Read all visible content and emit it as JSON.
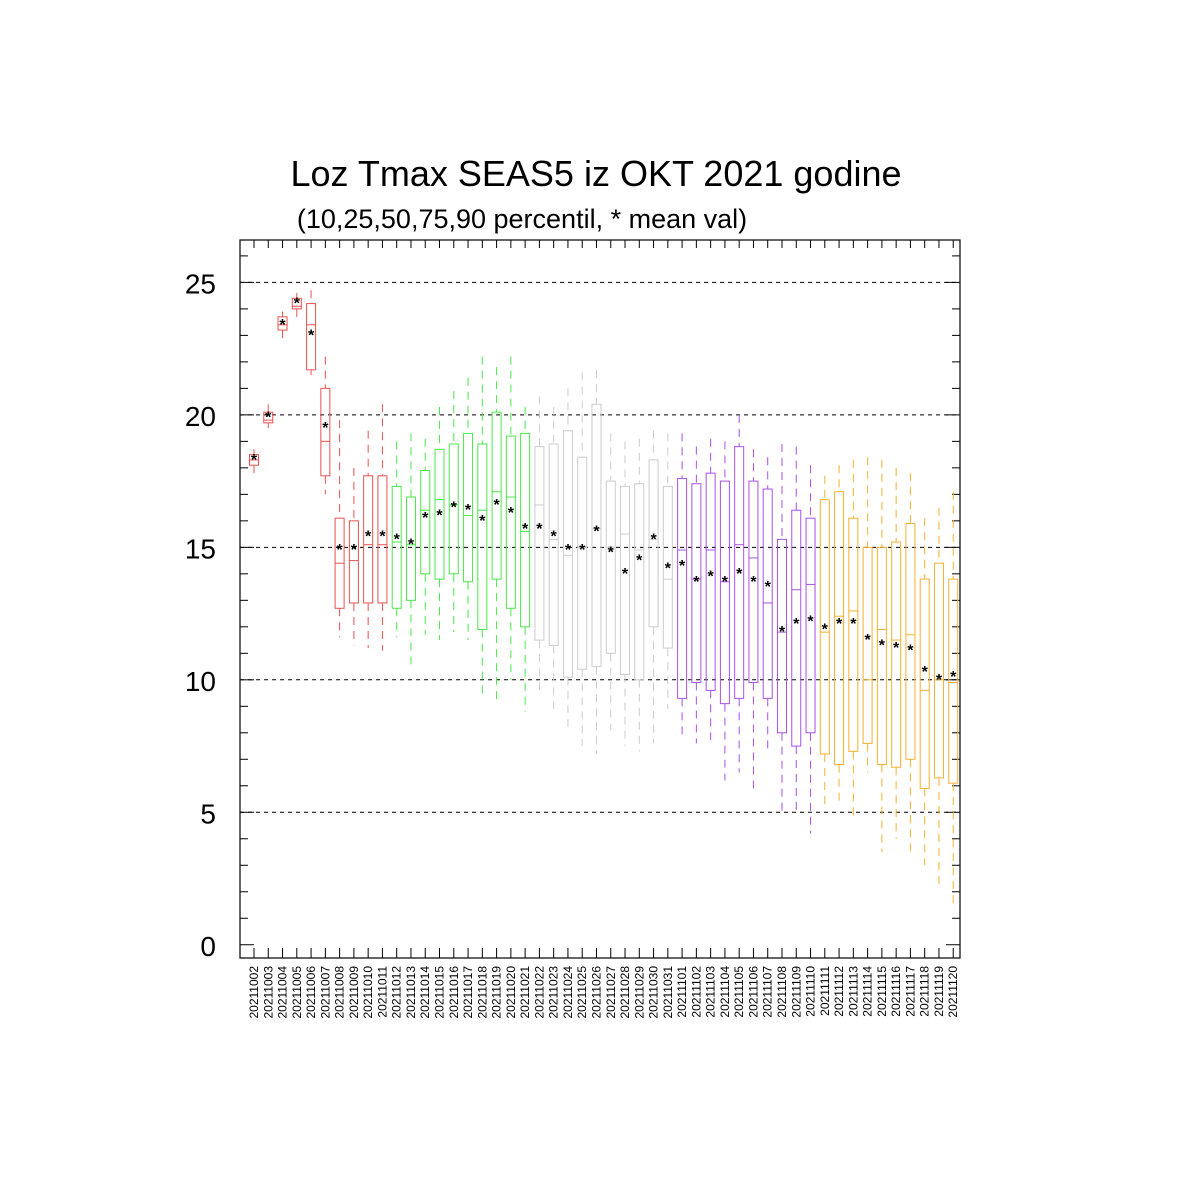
{
  "chart_data": {
    "type": "box",
    "title": "Loz Tmax SEAS5 iz OKT 2021 godine",
    "subtitle": "(10,25,50,75,90 percentil, * mean val)",
    "xlabel": "",
    "ylabel": "",
    "ylim": [
      -0.5,
      26.6
    ],
    "yticks": [
      0,
      5,
      10,
      15,
      20,
      25
    ],
    "ytick_labels": [
      "0",
      "5",
      "10",
      "15",
      "20",
      "25"
    ],
    "grid": "horizontal dashed at 5, 10, 15, 20, 25",
    "colors": {
      "red": "#e8524f",
      "green": "#4be84b",
      "gray": "#cccccc",
      "purple": "#a851e8",
      "orange": "#f5b030",
      "mean_marker": "#000066"
    },
    "categories": [
      "20211002",
      "20211003",
      "20211004",
      "20211005",
      "20211006",
      "20211007",
      "20211008",
      "20211009",
      "20211010",
      "20211011",
      "20211012",
      "20211013",
      "20211014",
      "20211015",
      "20211016",
      "20211017",
      "20211018",
      "20211019",
      "20211020",
      "20211021",
      "20211022",
      "20211023",
      "20211024",
      "20211025",
      "20211026",
      "20211027",
      "20211028",
      "20211029",
      "20211030",
      "20211031",
      "20211101",
      "20211102",
      "20211103",
      "20211104",
      "20211105",
      "20211106",
      "20211107",
      "20211108",
      "20211109",
      "20211110",
      "20211111",
      "20211112",
      "20211113",
      "20211114",
      "20211115",
      "20211116",
      "20211117",
      "20211118",
      "20211119",
      "20211120"
    ],
    "box_colors": [
      "red",
      "red",
      "red",
      "red",
      "red",
      "red",
      "red",
      "red",
      "red",
      "red",
      "green",
      "green",
      "green",
      "green",
      "green",
      "green",
      "green",
      "green",
      "green",
      "green",
      "gray",
      "gray",
      "gray",
      "gray",
      "gray",
      "gray",
      "gray",
      "gray",
      "gray",
      "gray",
      "purple",
      "purple",
      "purple",
      "purple",
      "purple",
      "purple",
      "purple",
      "purple",
      "purple",
      "purple",
      "orange",
      "orange",
      "orange",
      "orange",
      "orange",
      "orange",
      "orange",
      "orange",
      "orange",
      "orange"
    ],
    "p10": [
      17.8,
      19.5,
      22.8,
      23.7,
      21.5,
      17.0,
      11.6,
      11.3,
      11.2,
      11.1,
      11.6,
      10.5,
      11.7,
      11.5,
      11.8,
      11.5,
      9.4,
      9.1,
      10.0,
      8.8,
      9.6,
      8.9,
      8.0,
      7.5,
      7.2,
      8.1,
      7.5,
      7.3,
      7.6,
      8.9,
      7.8,
      7.6,
      7.5,
      6.2,
      6.5,
      5.8,
      7.2,
      5.0,
      5.0,
      4.2,
      5.2,
      5.4,
      4.7,
      6.5,
      3.5,
      4.0,
      3.3,
      3.0,
      2.2,
      1.4
    ],
    "q1": [
      18.1,
      19.7,
      23.2,
      24.0,
      21.7,
      17.7,
      12.7,
      12.9,
      12.9,
      12.9,
      12.7,
      13.0,
      14.0,
      13.8,
      14.0,
      13.7,
      11.9,
      13.8,
      12.7,
      12.0,
      11.5,
      11.3,
      10.1,
      10.4,
      10.5,
      11.0,
      10.2,
      10.0,
      12.0,
      11.2,
      9.3,
      9.9,
      9.6,
      9.1,
      9.3,
      9.9,
      9.3,
      8.0,
      7.5,
      8.0,
      7.2,
      6.8,
      7.3,
      7.6,
      6.8,
      6.7,
      7.0,
      5.9,
      6.3,
      6.1
    ],
    "median": [
      18.3,
      19.8,
      23.4,
      24.1,
      23.4,
      19.0,
      14.4,
      14.5,
      15.1,
      15.1,
      15.2,
      15.1,
      16.4,
      16.8,
      16.6,
      16.2,
      16.4,
      17.1,
      16.9,
      15.6,
      16.6,
      15.3,
      14.7,
      15.0,
      15.7,
      15.0,
      15.5,
      14.9,
      15.3,
      13.8,
      14.9,
      13.8,
      14.9,
      13.7,
      15.1,
      14.6,
      12.9,
      11.8,
      13.4,
      13.6,
      11.8,
      12.4,
      12.6,
      10.0,
      11.9,
      11.5,
      11.7,
      9.6,
      10.0,
      9.9
    ],
    "q3": [
      18.5,
      20.1,
      23.7,
      24.4,
      24.2,
      21.0,
      16.1,
      16.0,
      17.7,
      17.7,
      17.3,
      16.9,
      17.9,
      18.7,
      18.9,
      19.3,
      18.9,
      20.1,
      19.2,
      19.3,
      18.8,
      18.9,
      19.4,
      18.4,
      20.4,
      17.5,
      17.3,
      17.4,
      18.3,
      17.3,
      17.6,
      17.4,
      17.8,
      17.5,
      18.8,
      17.5,
      17.2,
      15.3,
      16.4,
      16.1,
      16.8,
      17.1,
      16.1,
      15.0,
      15.0,
      15.2,
      15.9,
      13.8,
      14.4,
      13.8
    ],
    "p90": [
      18.7,
      20.4,
      23.9,
      24.6,
      24.7,
      22.2,
      19.8,
      18.0,
      19.4,
      20.4,
      19.0,
      19.3,
      19.1,
      20.3,
      20.9,
      21.4,
      22.2,
      21.8,
      22.2,
      20.3,
      20.7,
      20.3,
      21.0,
      21.6,
      21.7,
      19.3,
      19.0,
      19.1,
      19.4,
      19.3,
      19.3,
      18.8,
      19.1,
      19.0,
      20.0,
      18.7,
      18.4,
      18.9,
      18.8,
      18.1,
      17.7,
      18.1,
      18.3,
      18.4,
      18.3,
      18.0,
      17.8,
      16.1,
      16.5,
      17.1
    ],
    "mean": [
      18.3,
      19.9,
      23.4,
      24.2,
      23.0,
      19.5,
      14.9,
      14.9,
      15.4,
      15.4,
      15.3,
      15.1,
      16.1,
      16.2,
      16.5,
      16.4,
      16.0,
      16.6,
      16.3,
      15.7,
      15.7,
      15.4,
      14.9,
      14.9,
      15.6,
      14.8,
      14.0,
      14.5,
      15.3,
      14.2,
      14.3,
      13.7,
      13.9,
      13.7,
      14.0,
      13.7,
      13.5,
      11.8,
      12.1,
      12.2,
      11.9,
      12.1,
      12.1,
      11.5,
      11.3,
      11.2,
      11.1,
      10.3,
      10.0,
      10.1
    ]
  }
}
